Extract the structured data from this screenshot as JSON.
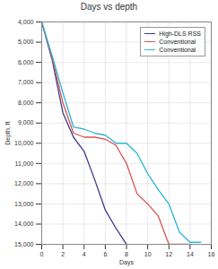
{
  "chart_data": {
    "type": "line",
    "title": "Days vs depth",
    "x_label": "Days",
    "y_label": "Depth, ft",
    "xlim": [
      0,
      16
    ],
    "xticks": [
      0,
      2,
      4,
      6,
      8,
      10,
      12,
      14,
      16
    ],
    "ylim": [
      15000,
      4000
    ],
    "yticks": [
      {
        "value": 4000,
        "label": "4,000"
      },
      {
        "value": 5000,
        "label": "5,000"
      },
      {
        "value": 6000,
        "label": "6,000"
      },
      {
        "value": 7000,
        "label": "7,000"
      },
      {
        "value": 8000,
        "label": "8,000"
      },
      {
        "value": 9000,
        "label": "9,000"
      },
      {
        "value": 10000,
        "label": "10,000"
      },
      {
        "value": 11000,
        "label": "11,000"
      },
      {
        "value": 12000,
        "label": "12,000"
      },
      {
        "value": 13000,
        "label": "13,000"
      },
      {
        "value": 14000,
        "label": "14,000"
      },
      {
        "value": 15000,
        "label": "15,000"
      }
    ],
    "grid": true,
    "legend": "top-right",
    "series": [
      {
        "name": "High-DLS RSS",
        "color": "#3b3b8f",
        "x": [
          0,
          1,
          2,
          3,
          4,
          5,
          6,
          7,
          8
        ],
        "values": [
          4000,
          5900,
          8500,
          9700,
          10400,
          11800,
          13300,
          14200,
          15000
        ]
      },
      {
        "name": "Conventional",
        "color": "#d9534f",
        "x": [
          0,
          1,
          2,
          3,
          4,
          5,
          6,
          7,
          8,
          9,
          10,
          11,
          12,
          14
        ],
        "values": [
          4000,
          5800,
          8000,
          9500,
          9700,
          9700,
          9800,
          10100,
          11000,
          12500,
          13000,
          13600,
          15000,
          15000
        ]
      },
      {
        "name": "Conventional",
        "color": "#2bb5d8",
        "x": [
          0,
          1,
          2,
          3,
          4,
          5,
          6,
          7,
          8,
          9,
          10,
          11,
          12,
          13,
          14,
          15
        ],
        "values": [
          4000,
          5700,
          7500,
          9200,
          9300,
          9500,
          9600,
          10000,
          10000,
          10500,
          11500,
          12300,
          13000,
          14400,
          14900,
          14900
        ]
      }
    ]
  }
}
